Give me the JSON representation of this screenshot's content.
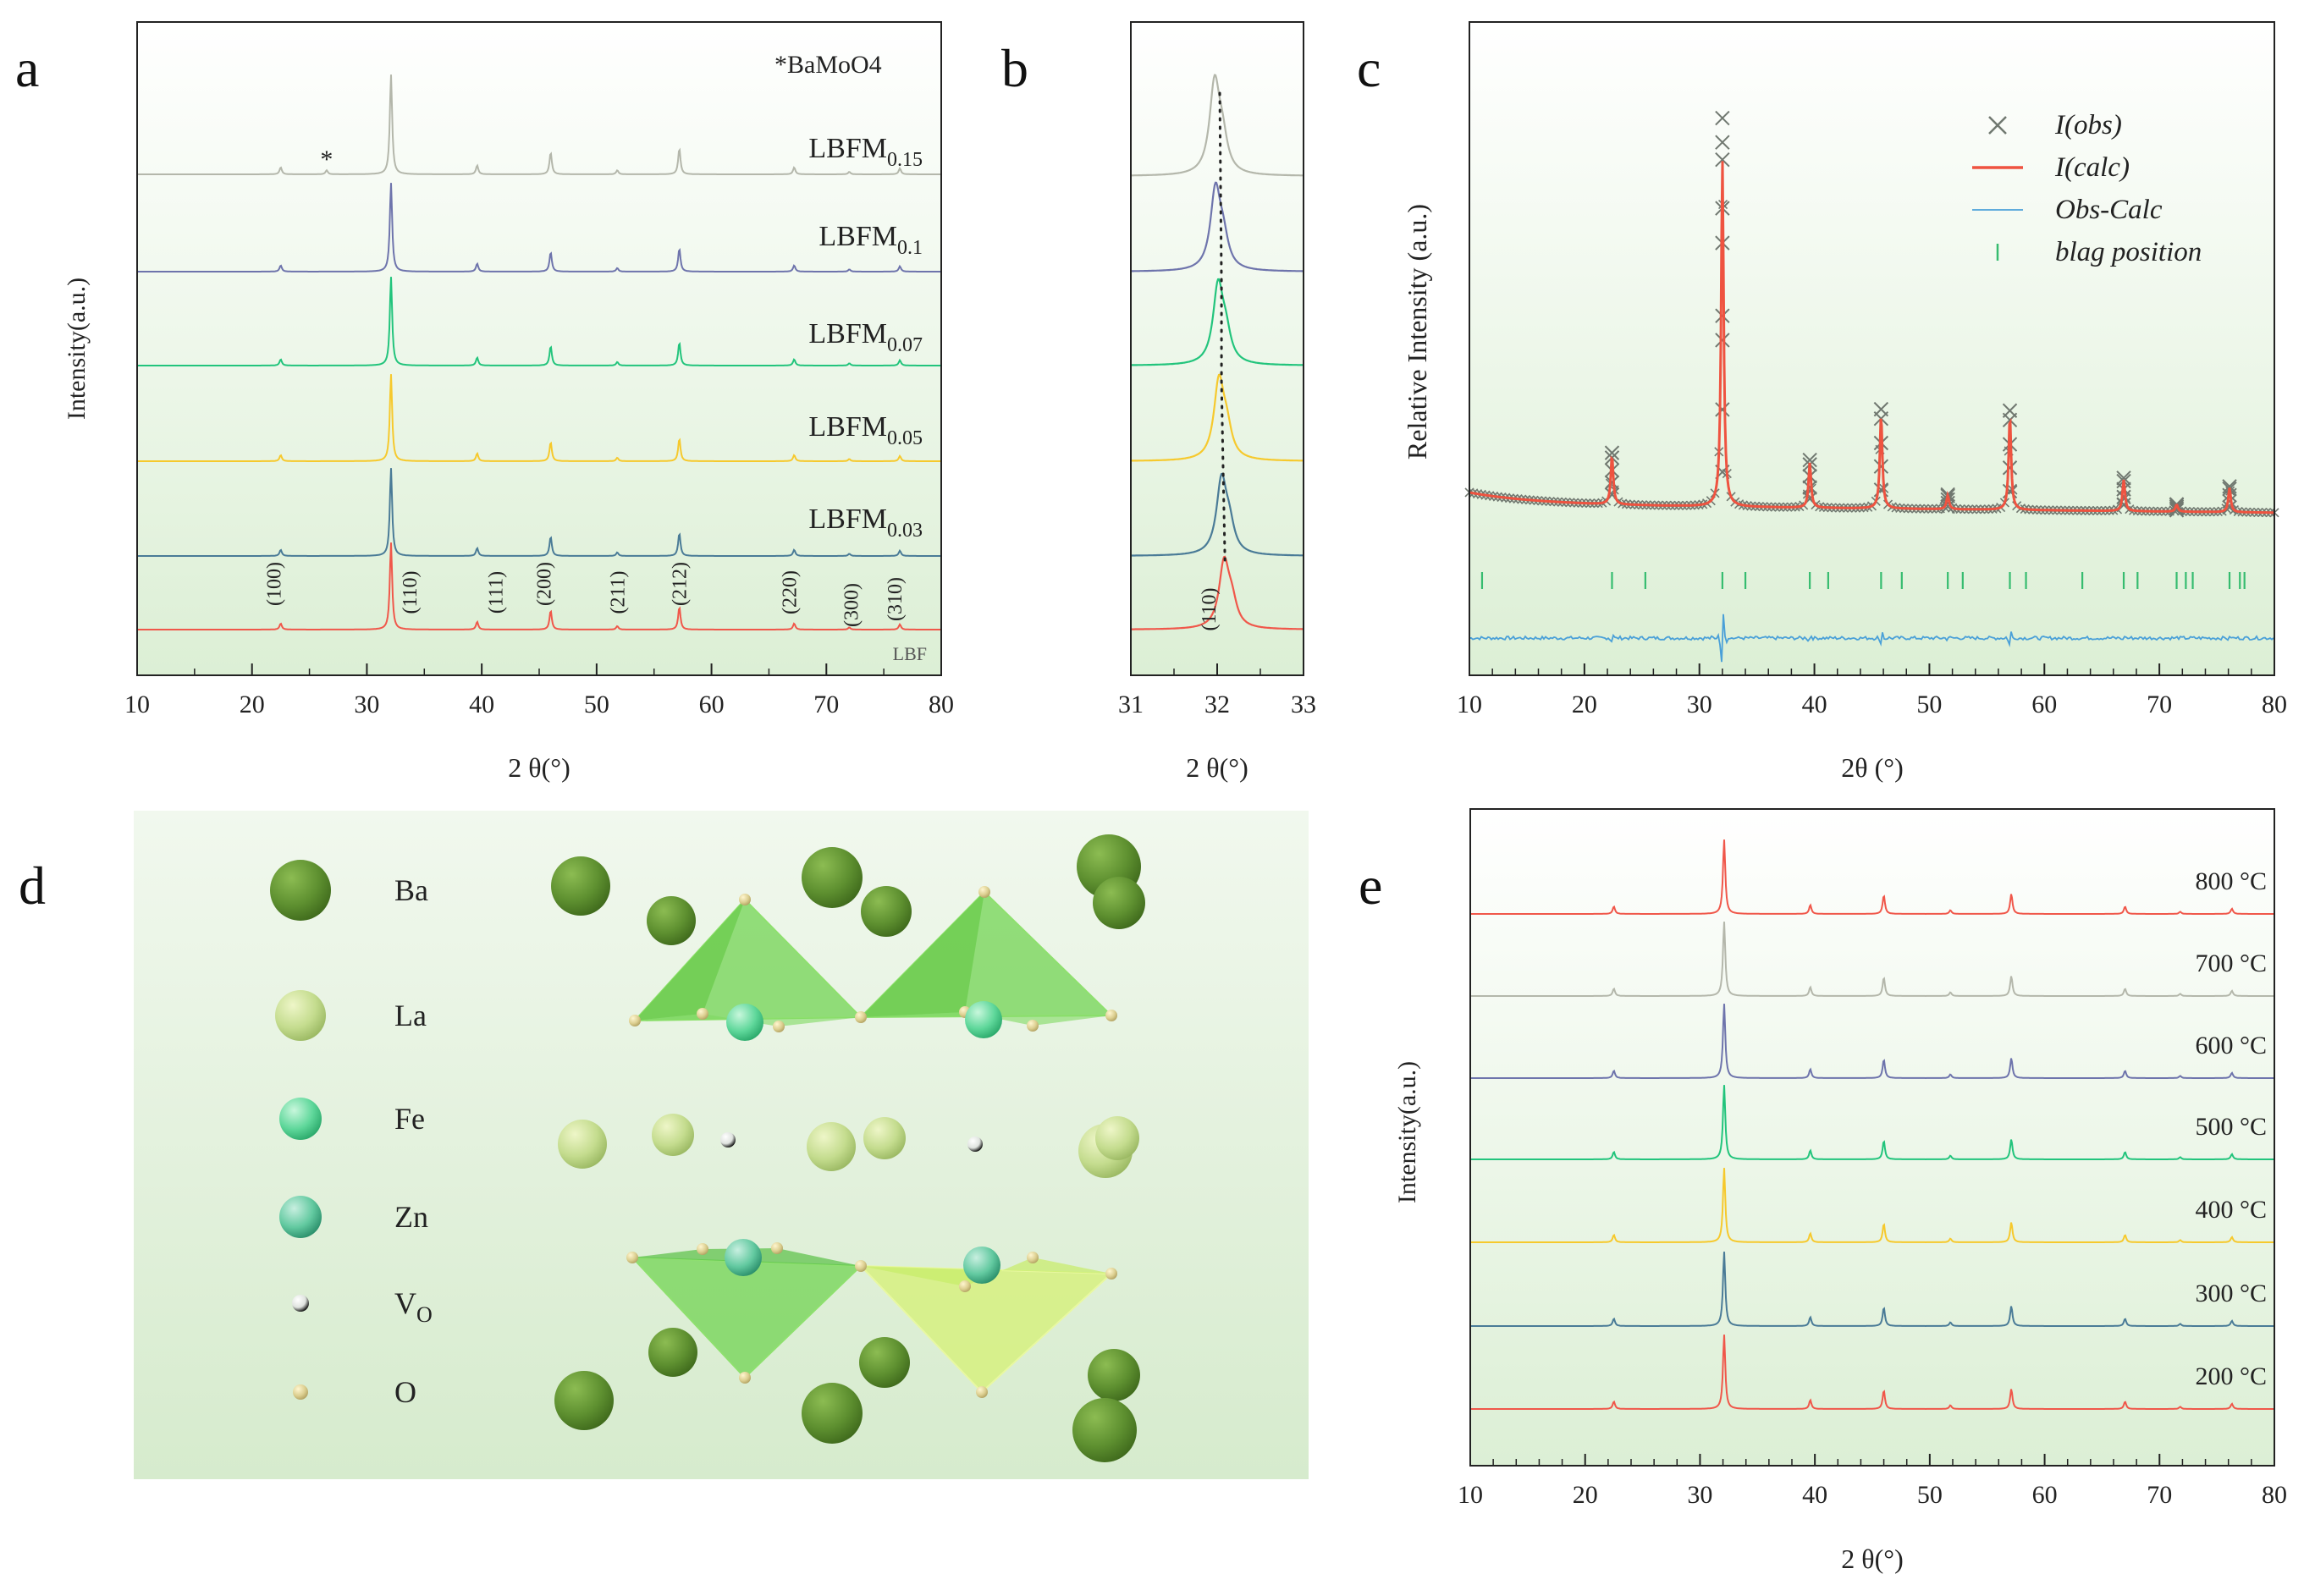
{
  "palette": {
    "red": "#f0574a",
    "blue": "#4a7b97",
    "yellow": "#f6c92d",
    "green": "#22c47c",
    "purple": "#6e74ac",
    "gray": "#b4b7ab",
    "obs": "#707870",
    "calc": "#ef5340",
    "diff": "#4aa0d8",
    "bragg": "#36bc6f",
    "ba": "#5e9030",
    "la": "#bcd88a",
    "fe": "#5ed79a",
    "zn": "#62c9a0",
    "vo": "#dfe3df",
    "o": "#dccf90",
    "bg_top": "#ffffff",
    "bg_bottom": "#dcefd5"
  },
  "panel_labels": {
    "a": "a",
    "b": "b",
    "c": "c",
    "d": "d",
    "e": "e"
  },
  "chart_data": [
    {
      "id": "a",
      "type": "line",
      "title": "",
      "xlabel": "2 θ(°)",
      "ylabel": "Intensity(a.u.)",
      "xlim": [
        10,
        80
      ],
      "xticks": [
        "10",
        "20",
        "30",
        "40",
        "50",
        "60",
        "70",
        "80"
      ],
      "annotation": "*BaMoO4",
      "impurity_marker": {
        "x": 26.5,
        "label": "*"
      },
      "peaks": [
        {
          "x": 22.5,
          "h": 0.07,
          "hkl": "(100)"
        },
        {
          "x": 32.1,
          "h": 1.0,
          "hkl": "(110)"
        },
        {
          "x": 39.6,
          "h": 0.09,
          "hkl": "(111)"
        },
        {
          "x": 46.0,
          "h": 0.22,
          "hkl": "(200)"
        },
        {
          "x": 51.8,
          "h": 0.04,
          "hkl": "(211)"
        },
        {
          "x": 57.2,
          "h": 0.26,
          "hkl": "(212)"
        },
        {
          "x": 67.2,
          "h": 0.07,
          "hkl": "(220)"
        },
        {
          "x": 72.0,
          "h": 0.025,
          "hkl": "(300)"
        },
        {
          "x": 76.4,
          "h": 0.06,
          "hkl": "(310)"
        }
      ],
      "series": [
        {
          "name": "LBF",
          "label_main": "",
          "label_sub": "",
          "color": "red"
        },
        {
          "name": "LBFM0.03",
          "label_main": "LBFM",
          "label_sub": "0.03",
          "color": "blue"
        },
        {
          "name": "LBFM0.05",
          "label_main": "LBFM",
          "label_sub": "0.05",
          "color": "yellow"
        },
        {
          "name": "LBFM0.07",
          "label_main": "LBFM",
          "label_sub": "0.07",
          "color": "green"
        },
        {
          "name": "LBFM0.1",
          "label_main": "LBFM",
          "label_sub": "0.1",
          "color": "purple"
        },
        {
          "name": "LBFM0.15",
          "label_main": "LBFM",
          "label_sub": "0.15",
          "color": "gray"
        }
      ]
    },
    {
      "id": "b",
      "type": "line",
      "title": "",
      "xlabel": "2 θ(°)",
      "xlim": [
        31,
        33
      ],
      "xticks": [
        "31",
        "32",
        "33"
      ],
      "peak_label": "(110)",
      "series": [
        {
          "name": "LBF",
          "peak_x": 32.08,
          "color": "red"
        },
        {
          "name": "LBFM0.03",
          "peak_x": 32.05,
          "color": "blue"
        },
        {
          "name": "LBFM0.05",
          "peak_x": 32.02,
          "color": "yellow"
        },
        {
          "name": "LBFM0.07",
          "peak_x": 32.01,
          "color": "green"
        },
        {
          "name": "LBFM0.1",
          "peak_x": 31.98,
          "color": "purple"
        },
        {
          "name": "LBFM0.15",
          "peak_x": 31.97,
          "color": "gray"
        }
      ]
    },
    {
      "id": "c",
      "type": "scatter",
      "title": "",
      "xlabel": "2θ (°)",
      "ylabel": "Relative Intensity (a.u.)",
      "xlim": [
        10,
        80
      ],
      "xticks": [
        "10",
        "20",
        "30",
        "40",
        "50",
        "60",
        "70",
        "80"
      ],
      "legend": [
        {
          "label": "I(obs)",
          "symbol": "cross",
          "color": "obs"
        },
        {
          "label": "I(calc)",
          "symbol": "line",
          "color": "calc"
        },
        {
          "label": "Obs-Calc",
          "symbol": "line",
          "color": "diff"
        },
        {
          "label": "blag position",
          "symbol": "tick",
          "color": "bragg"
        }
      ],
      "peaks": [
        {
          "x": 22.4,
          "h": 0.14
        },
        {
          "x": 32.0,
          "h": 1.0
        },
        {
          "x": 39.6,
          "h": 0.13
        },
        {
          "x": 45.8,
          "h": 0.27
        },
        {
          "x": 51.6,
          "h": 0.04
        },
        {
          "x": 57.0,
          "h": 0.27
        },
        {
          "x": 66.9,
          "h": 0.09
        },
        {
          "x": 71.5,
          "h": 0.02
        },
        {
          "x": 76.1,
          "h": 0.07
        }
      ],
      "obs_points_on_main_peak": [
        1.12,
        1.05,
        1.0,
        0.86,
        0.76,
        0.55,
        0.48,
        0.28,
        0.1
      ],
      "bragg_positions": [
        11.1,
        22.4,
        25.3,
        32.0,
        34.0,
        39.6,
        41.2,
        45.8,
        47.6,
        51.6,
        52.9,
        57.0,
        58.4,
        63.3,
        66.9,
        68.1,
        71.5,
        72.3,
        72.9,
        76.1,
        77.0,
        77.4
      ]
    },
    {
      "id": "e",
      "type": "line",
      "title": "",
      "xlabel": "2 θ(°)",
      "ylabel": "Intensity(a.u.)",
      "xlim": [
        10,
        80
      ],
      "xticks": [
        "10",
        "20",
        "30",
        "40",
        "50",
        "60",
        "70",
        "80"
      ],
      "peaks": [
        {
          "x": 22.5,
          "h": 0.1
        },
        {
          "x": 32.1,
          "h": 1.0
        },
        {
          "x": 39.6,
          "h": 0.12
        },
        {
          "x": 46.0,
          "h": 0.25
        },
        {
          "x": 51.8,
          "h": 0.05
        },
        {
          "x": 57.1,
          "h": 0.27
        },
        {
          "x": 67.0,
          "h": 0.1
        },
        {
          "x": 71.8,
          "h": 0.03
        },
        {
          "x": 76.3,
          "h": 0.07
        }
      ],
      "series": [
        {
          "name": "200 °C",
          "color": "red"
        },
        {
          "name": "300 °C",
          "color": "blue"
        },
        {
          "name": "400 °C",
          "color": "yellow"
        },
        {
          "name": "500 °C",
          "color": "green"
        },
        {
          "name": "600 °C",
          "color": "purple"
        },
        {
          "name": "700 °C",
          "color": "gray"
        },
        {
          "name": "800 °C",
          "color": "red"
        }
      ]
    }
  ],
  "structure": {
    "legend": [
      {
        "label": "Ba",
        "sub": "",
        "species": "ba"
      },
      {
        "label": "La",
        "sub": "",
        "species": "la"
      },
      {
        "label": "Fe",
        "sub": "",
        "species": "fe"
      },
      {
        "label": "Zn",
        "sub": "",
        "species": "zn"
      },
      {
        "label": "V",
        "sub": "O",
        "species": "vo"
      },
      {
        "label": "O",
        "sub": "",
        "species": "o"
      }
    ]
  }
}
